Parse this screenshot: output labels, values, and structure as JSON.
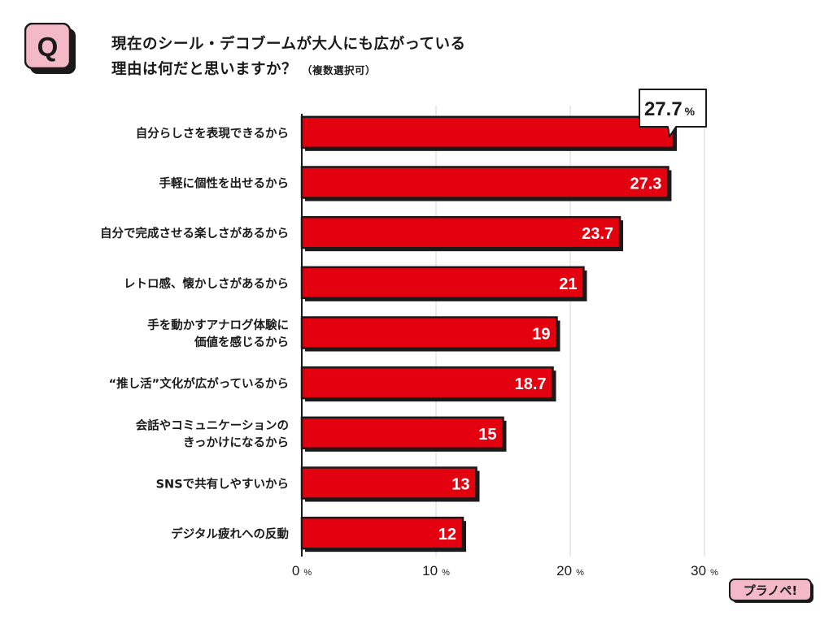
{
  "question_badge": "Q",
  "title": {
    "line1": "現在のシール・デコブームが大人にも広がっている",
    "line2": "理由は何だと思いますか？",
    "note": "（複数選択可）"
  },
  "brand": "プラノペ!",
  "colors": {
    "bar": "#e3000f",
    "shadow": "#1a1a1a",
    "grid": "#dcdcdc",
    "text": "#1a1a1a"
  },
  "chart_data": {
    "type": "bar",
    "orientation": "horizontal",
    "unit": "%",
    "xlim": [
      0,
      30
    ],
    "xticks": [
      0,
      10,
      20,
      30
    ],
    "grid": true,
    "callout": "27.7",
    "categories": [
      [
        "自分らしさを表現できるから"
      ],
      [
        "手軽に個性を出せるから"
      ],
      [
        "自分で完成させる楽しさがあるから"
      ],
      [
        "レトロ感、懐かしさがあるから"
      ],
      [
        "手を動かすアナログ体験に",
        "価値を感じるから"
      ],
      [
        "“推し活”文化が広がっているから"
      ],
      [
        "会話やコミュニケーションの",
        "きっかけになるから"
      ],
      [
        "SNSで共有しやすいから"
      ],
      [
        "デジタル疲れへの反動"
      ]
    ],
    "values": [
      27.7,
      27.3,
      23.7,
      21,
      19,
      18.7,
      15,
      13,
      12
    ],
    "value_labels": [
      "",
      "27.3",
      "23.7",
      "21",
      "19",
      "18.7",
      "15",
      "13",
      "12"
    ]
  }
}
